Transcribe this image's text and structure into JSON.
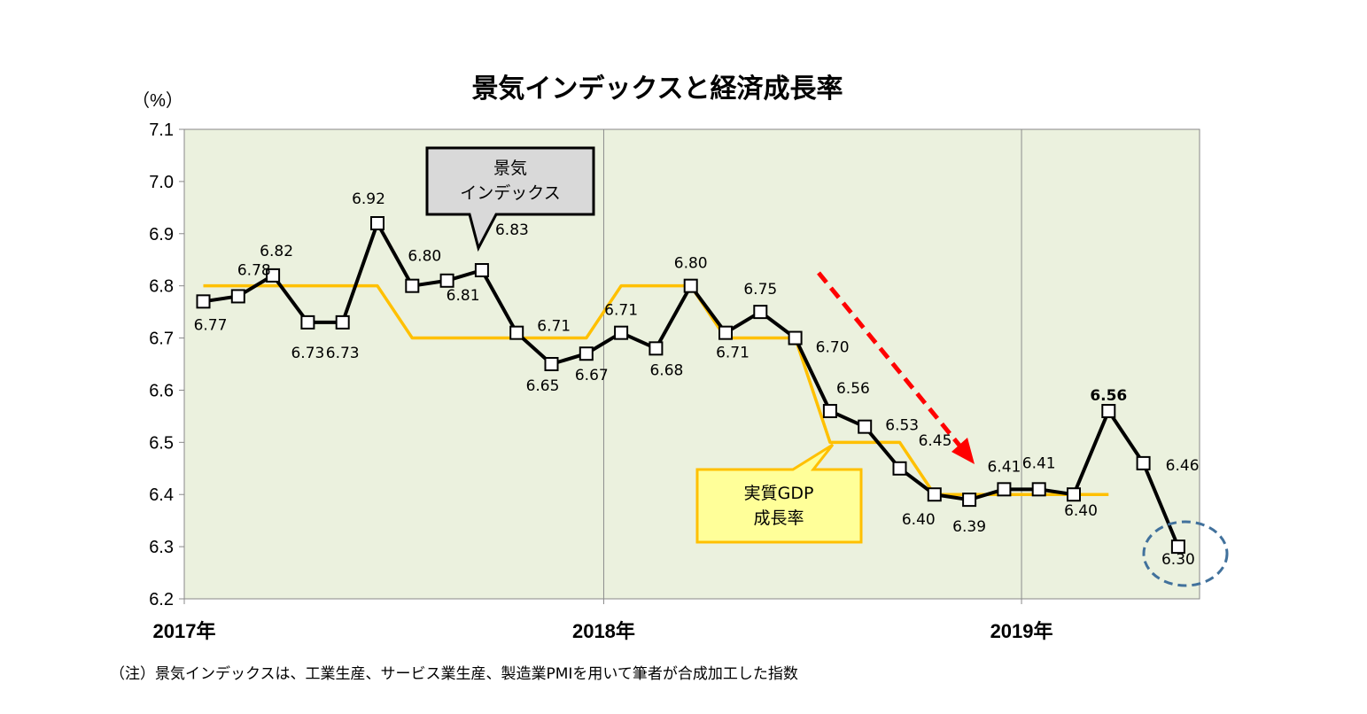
{
  "chart_data": {
    "type": "line",
    "title": "景気インデックスと経済成長率",
    "y_unit_label": "（%）",
    "ylim": [
      6.2,
      7.1
    ],
    "y_ticks": [
      "7.1",
      "7.0",
      "6.9",
      "6.8",
      "6.7",
      "6.6",
      "6.5",
      "6.4",
      "6.3",
      "6.2"
    ],
    "x_range_months": [
      "2017-01",
      "2019-05"
    ],
    "year_labels": [
      "2017年",
      "2018年",
      "2019年"
    ],
    "grid": "vertical lines at year boundaries",
    "series": [
      {
        "name": "景気インデックス",
        "color": "#000000",
        "marker": "square",
        "x": [
          "2017-01",
          "2017-02",
          "2017-03",
          "2017-04",
          "2017-05",
          "2017-06",
          "2017-07",
          "2017-08",
          "2017-09",
          "2017-10",
          "2017-11",
          "2017-12",
          "2018-01",
          "2018-02",
          "2018-03",
          "2018-04",
          "2018-05",
          "2018-06",
          "2018-07",
          "2018-08",
          "2018-09",
          "2018-10",
          "2018-11",
          "2018-12",
          "2019-01",
          "2019-02",
          "2019-03",
          "2019-04",
          "2019-05"
        ],
        "values": [
          6.77,
          6.78,
          6.82,
          6.73,
          6.73,
          6.92,
          6.8,
          6.81,
          6.83,
          6.71,
          6.65,
          6.67,
          6.71,
          6.68,
          6.8,
          6.71,
          6.75,
          6.7,
          6.56,
          6.53,
          6.45,
          6.4,
          6.39,
          6.41,
          6.41,
          6.4,
          6.56,
          6.46,
          6.3
        ],
        "labels": [
          "6.77",
          "6.78",
          "6.82",
          "6.73",
          "6.73",
          "6.92",
          "6.80",
          "6.81",
          "6.83",
          "6.71",
          "6.65",
          "6.67",
          "6.71",
          "6.68",
          "6.80",
          "6.71",
          "6.75",
          "6.70",
          "6.56",
          "6.53",
          "6.45",
          "6.40",
          "6.39",
          "6.41",
          "6.41",
          "6.40",
          "6.56",
          "6.46",
          "6.30"
        ]
      },
      {
        "name": "実質GDP成長率",
        "color": "#FFC000",
        "quarterly_steps": [
          {
            "from": "2017-01",
            "to": "2017-06",
            "value": 6.8
          },
          {
            "from": "2017-07",
            "to": "2017-12",
            "value": 6.7
          },
          {
            "from": "2018-01",
            "to": "2018-03",
            "value": 6.8
          },
          {
            "from": "2018-04",
            "to": "2018-06",
            "value": 6.7
          },
          {
            "from": "2018-07",
            "to": "2018-09",
            "value": 6.5
          },
          {
            "from": "2018-10",
            "to": "2019-03",
            "value": 6.4
          }
        ]
      }
    ],
    "annotations": {
      "index_callout": [
        "景気",
        "インデックス"
      ],
      "gdp_callout": [
        "実質GDP",
        "成長率"
      ],
      "trend_arrow": "downward, red dashed",
      "highlight_circle": "around last point (6.30), blue dashed"
    },
    "footnote": "（注）景気インデックスは、工業生産、サービス業生産、製造業PMIを用いて筆者が合成加工した指数"
  },
  "colors": {
    "plot_bg": "#EBF1DE",
    "index_line": "#000000",
    "gdp_line": "#FFC000",
    "arrow": "#FF0000",
    "circle": "#41719C",
    "index_callout_fill": "#D9D9D9",
    "gdp_callout_fill": "#FFFF99"
  }
}
